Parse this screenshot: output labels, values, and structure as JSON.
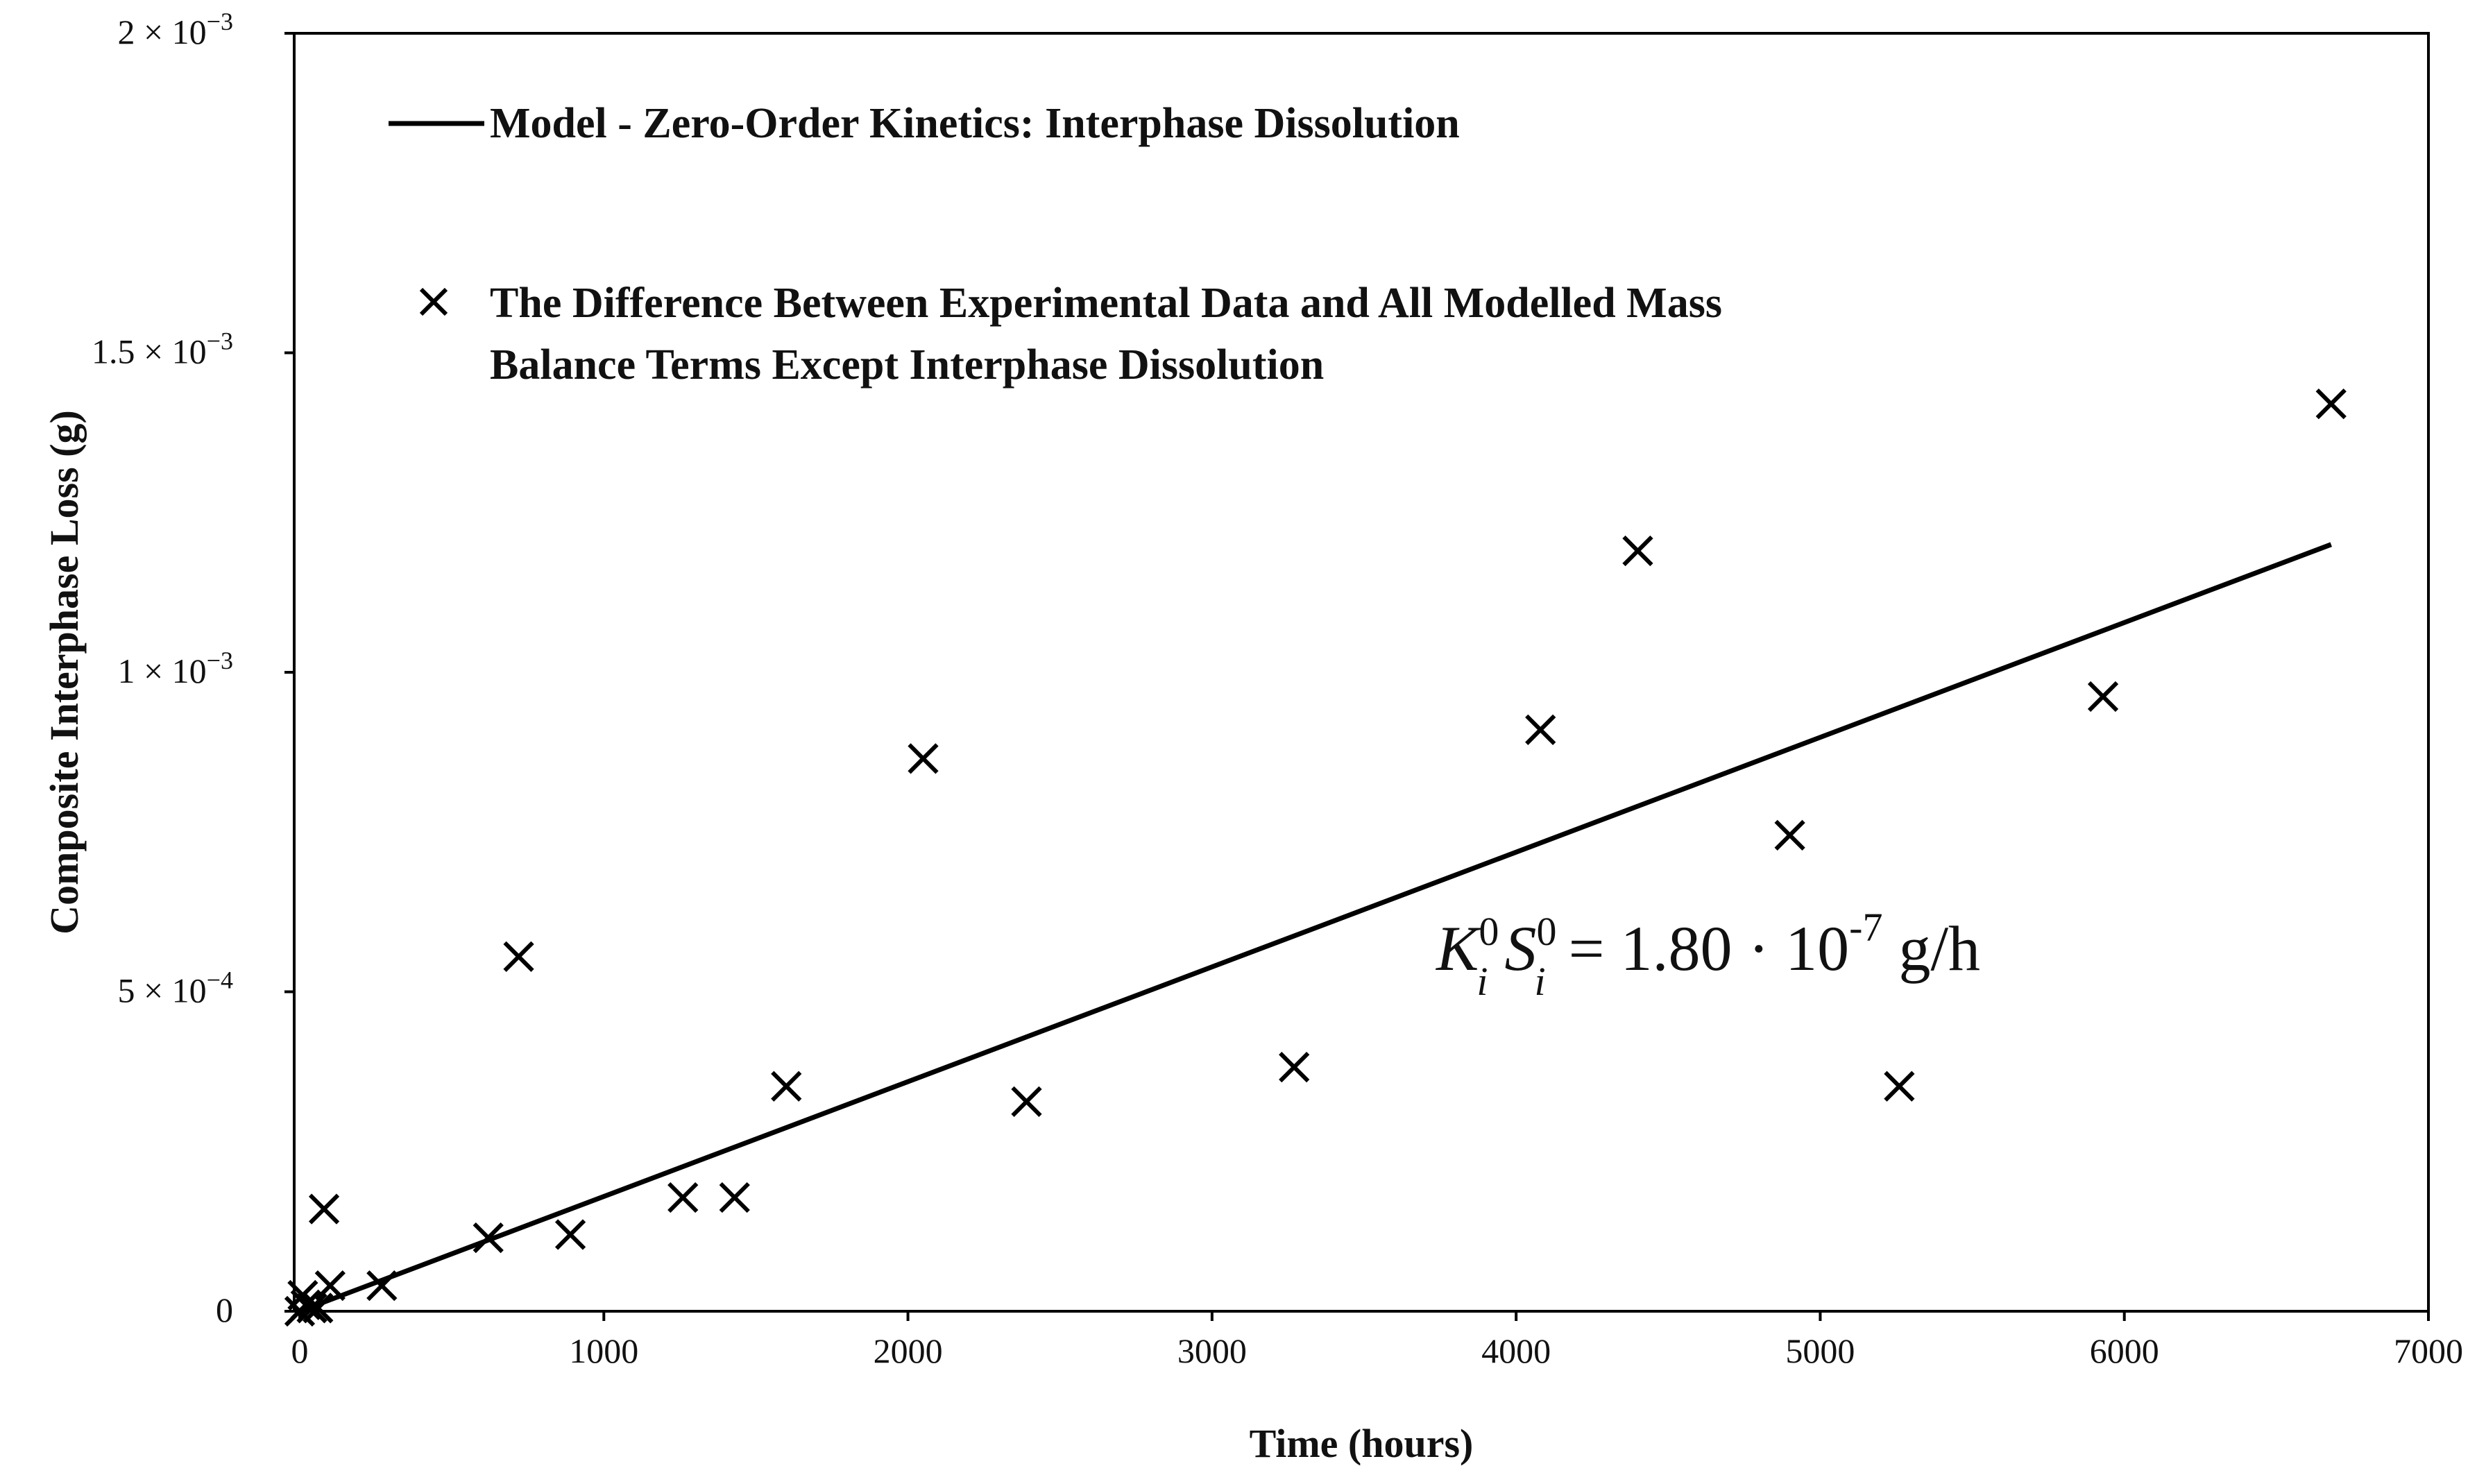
{
  "chart_data": {
    "type": "scatter",
    "title": "",
    "xlabel": "Time (hours)",
    "ylabel": "Composite Interphase Loss (g)",
    "xlim": [
      0,
      7000
    ],
    "ylim": [
      0,
      0.002
    ],
    "grid": false,
    "legend_position": "top-left",
    "x_ticks": [
      0,
      1000,
      2000,
      3000,
      4000,
      5000,
      6000,
      7000
    ],
    "x_tick_labels": [
      "0",
      "1000",
      "2000",
      "3000",
      "4000",
      "5000",
      "6000",
      "7000"
    ],
    "y_ticks": [
      {
        "value": 0,
        "mantissa": "0",
        "exponent": ""
      },
      {
        "value": 0.0005,
        "mantissa": "5 × 10",
        "exponent": "−4"
      },
      {
        "value": 0.001,
        "mantissa": "1 × 10",
        "exponent": "−3"
      },
      {
        "value": 0.0015,
        "mantissa": "1.5 × 10",
        "exponent": "−3"
      },
      {
        "value": 0.002,
        "mantissa": "2 × 10",
        "exponent": "−3"
      }
    ],
    "series": [
      {
        "name": "Model - Zero-Order Kinetics: Interphase Dissolution",
        "kind": "line",
        "color": "#000000",
        "x": [
          0,
          6680
        ],
        "y": [
          0,
          0.0012
        ]
      },
      {
        "name": "The Difference Between Experimental Data and All Modelled Mass Balance Terms Except Interphase Dissolution",
        "kind": "scatter",
        "marker": "x",
        "color": "#000000",
        "x": [
          0,
          10,
          20,
          40,
          60,
          80,
          100,
          270,
          620,
          720,
          890,
          1260,
          1430,
          1600,
          2050,
          2390,
          3270,
          4080,
          4400,
          4900,
          5260,
          5930,
          6680
        ],
        "y": [
          0,
          2.5e-05,
          1e-05,
          5e-06,
          5e-06,
          0.00016,
          4e-05,
          4e-05,
          0.000115,
          0.000555,
          0.00012,
          0.000178,
          0.000178,
          0.000352,
          0.000865,
          0.000328,
          0.000382,
          0.00091,
          0.00119,
          0.000745,
          0.000352,
          0.000962,
          0.00142
        ]
      }
    ],
    "legend": [
      {
        "label_lines": [
          "Model - Zero-Order Kinetics: Interphase Dissolution"
        ],
        "symbol": "line"
      },
      {
        "label_lines": [
          "The Difference Between Experimental Data and All Modelled Mass",
          "Balance Terms Except Interphase Dissolution"
        ],
        "symbol": "x"
      }
    ],
    "annotation": {
      "K": "K",
      "sub": "i",
      "sup": "0",
      "S": "S",
      "rest": " = 1.80 · 10",
      "exp": "-7",
      "unit": " g/h"
    }
  }
}
